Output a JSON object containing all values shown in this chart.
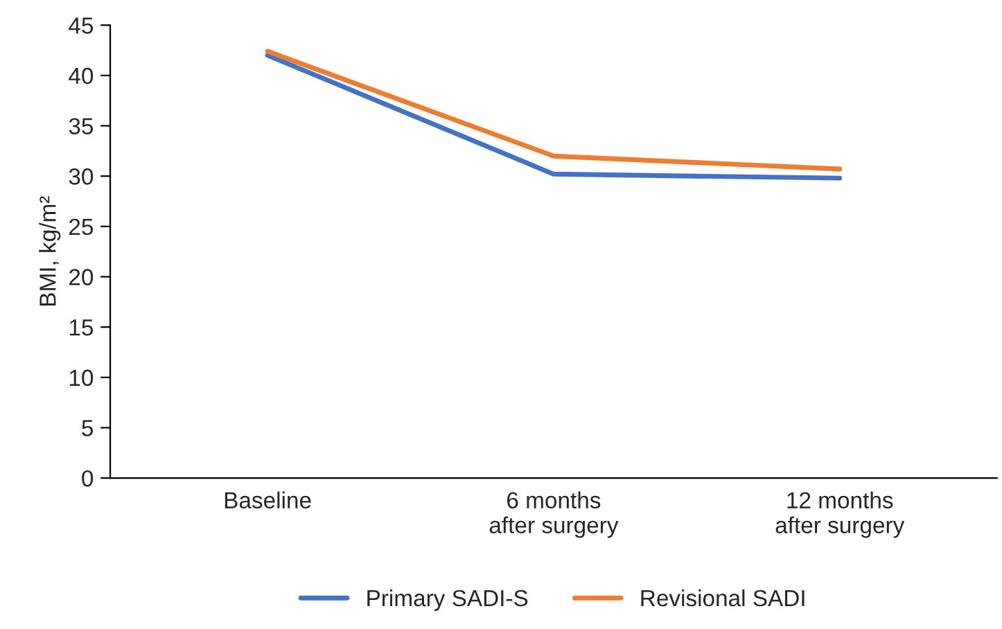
{
  "chart_data": {
    "type": "line",
    "ylabel": "BMI, kg/m²",
    "categories": [
      "Baseline",
      "6 months\nafter surgery",
      "12 months\nafter surgery"
    ],
    "series": [
      {
        "name": "Primary SADI-S",
        "color": "#4472c4",
        "values": [
          42.0,
          30.2,
          29.8
        ]
      },
      {
        "name": "Revisional SADI",
        "color": "#ed7d31",
        "values": [
          42.4,
          32.0,
          30.7
        ]
      }
    ],
    "ylim": [
      0,
      45
    ],
    "yticks": [
      0,
      5,
      10,
      15,
      20,
      25,
      30,
      35,
      40,
      45
    ],
    "grid": false,
    "legend": "bottom",
    "marker": "none",
    "line_style": "solid"
  }
}
